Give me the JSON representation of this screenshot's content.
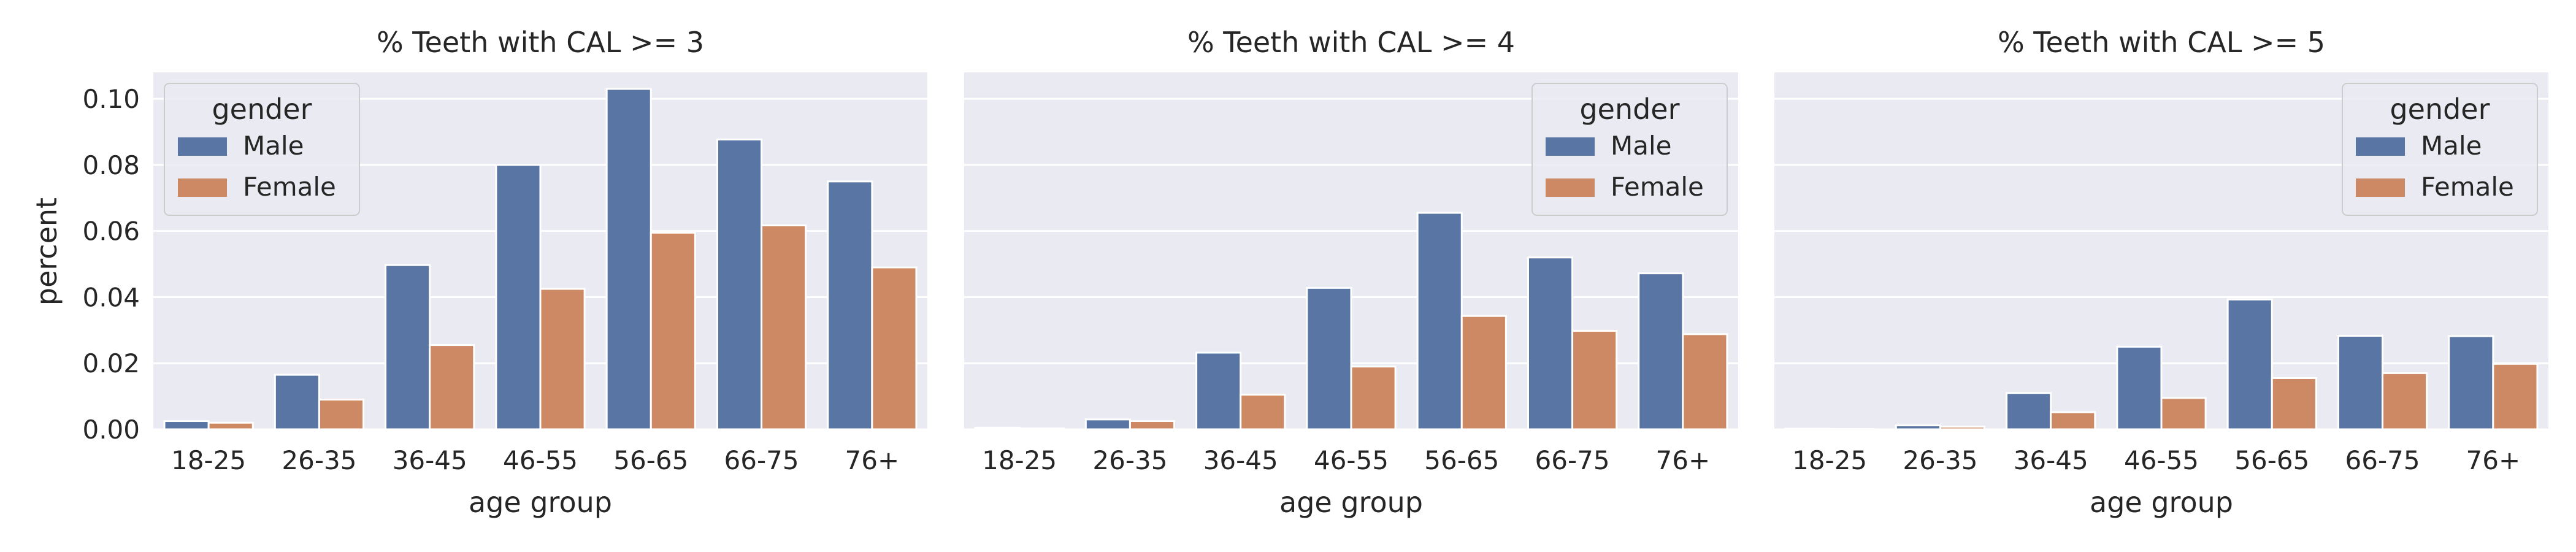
{
  "figure": {
    "ylabel": "percent",
    "colors": {
      "Male": "#5875a4",
      "Female": "#cc8963",
      "panel_bg": "#eaeaf2",
      "grid": "#ffffff"
    }
  },
  "chart_data": [
    {
      "type": "bar",
      "title": "% Teeth with CAL >= 3",
      "xlabel": "age group",
      "ylabel": "percent",
      "categories": [
        "18-25",
        "26-35",
        "36-45",
        "46-55",
        "56-65",
        "66-75",
        "76+"
      ],
      "series": [
        {
          "name": "Male",
          "values": [
            0.0025,
            0.0165,
            0.0497,
            0.08,
            0.103,
            0.0877,
            0.075
          ]
        },
        {
          "name": "Female",
          "values": [
            0.002,
            0.009,
            0.0255,
            0.0425,
            0.0595,
            0.0617,
            0.049
          ]
        }
      ],
      "yticks": [
        "0.00",
        "0.02",
        "0.04",
        "0.06",
        "0.08",
        "0.10"
      ],
      "ylim": [
        0,
        0.108
      ],
      "grid": true,
      "legend": {
        "title": "gender",
        "position": "upper-left"
      }
    },
    {
      "type": "bar",
      "title": "% Teeth with CAL >= 4",
      "xlabel": "age group",
      "ylabel": "",
      "categories": [
        "18-25",
        "26-35",
        "36-45",
        "46-55",
        "56-65",
        "66-75",
        "76+"
      ],
      "series": [
        {
          "name": "Male",
          "values": [
            0.0005,
            0.003,
            0.0232,
            0.0428,
            0.0655,
            0.052,
            0.0472
          ]
        },
        {
          "name": "Female",
          "values": [
            0.0003,
            0.0025,
            0.0105,
            0.019,
            0.0343,
            0.0298,
            0.0288
          ]
        }
      ],
      "yticks": [
        "0.00",
        "0.02",
        "0.04",
        "0.06",
        "0.08",
        "0.10"
      ],
      "ylim": [
        0,
        0.108
      ],
      "grid": true,
      "legend": {
        "title": "gender",
        "position": "upper-right"
      }
    },
    {
      "type": "bar",
      "title": "% Teeth with CAL >= 5",
      "xlabel": "age group",
      "ylabel": "",
      "categories": [
        "18-25",
        "26-35",
        "36-45",
        "46-55",
        "56-65",
        "66-75",
        "76+"
      ],
      "series": [
        {
          "name": "Male",
          "values": [
            0.0002,
            0.0012,
            0.011,
            0.025,
            0.0393,
            0.0283,
            0.0282
          ]
        },
        {
          "name": "Female",
          "values": [
            0.0001,
            0.0008,
            0.0052,
            0.0095,
            0.0155,
            0.017,
            0.0198
          ]
        }
      ],
      "yticks": [
        "0.00",
        "0.02",
        "0.04",
        "0.06",
        "0.08",
        "0.10"
      ],
      "ylim": [
        0,
        0.108
      ],
      "grid": true,
      "legend": {
        "title": "gender",
        "position": "upper-right"
      }
    }
  ]
}
